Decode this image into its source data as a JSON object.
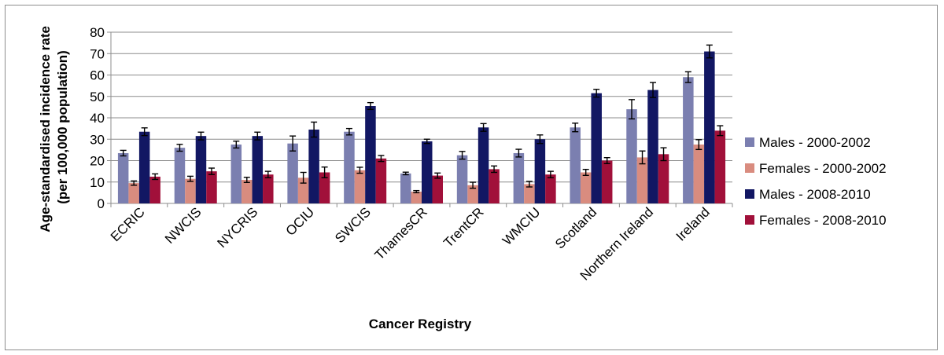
{
  "chart_data": {
    "type": "bar",
    "xlabel": "Cancer Registry",
    "ylabel_line1": "Age-standardised incidence rate",
    "ylabel_line2": "(per 100,000 population)",
    "ylim": [
      0,
      80
    ],
    "yticks": [
      0,
      10,
      20,
      30,
      40,
      50,
      60,
      70,
      80
    ],
    "grid": true,
    "legend_position": "right",
    "error_bars": true,
    "categories": [
      "ECRIC",
      "NWCIS",
      "NYCRIS",
      "OCIU",
      "SWCIS",
      "ThamesCR",
      "TrentCR",
      "WMCIU",
      "Scotland",
      "Northern Ireland",
      "Ireland"
    ],
    "series": [
      {
        "name": "Males - 2000-2002",
        "color": "#7b7fb0",
        "values": [
          23.5,
          26,
          27.5,
          28,
          33.5,
          14,
          22.5,
          23.5,
          35.5,
          44,
          59
        ],
        "err": [
          1.3,
          1.6,
          1.6,
          3.5,
          1.5,
          0.6,
          1.8,
          1.8,
          2,
          4.5,
          2.5
        ]
      },
      {
        "name": "Females - 2000-2002",
        "color": "#d98c7f",
        "values": [
          9.5,
          11.5,
          11,
          12,
          15.5,
          5.5,
          8.5,
          9,
          14.5,
          21.5,
          27.5
        ],
        "err": [
          1,
          1.2,
          1.2,
          2.5,
          1.4,
          0.5,
          1.4,
          1.3,
          1.4,
          3,
          2.3
        ]
      },
      {
        "name": "Males - 2008-2010",
        "color": "#121763",
        "values": [
          33.5,
          31.5,
          31.5,
          34.5,
          45.5,
          29,
          35.5,
          30,
          51.5,
          53,
          71
        ],
        "err": [
          1.8,
          1.8,
          1.8,
          3.5,
          1.6,
          1,
          1.8,
          2,
          1.8,
          3.5,
          3
        ]
      },
      {
        "name": "Females - 2008-2010",
        "color": "#a1103a",
        "values": [
          12.5,
          15,
          13.5,
          14.5,
          21,
          13,
          16,
          13.5,
          20,
          23,
          34
        ],
        "err": [
          1.3,
          1.5,
          1.5,
          2.5,
          1.4,
          1.2,
          1.5,
          1.5,
          1.4,
          3,
          2.3
        ]
      }
    ]
  }
}
